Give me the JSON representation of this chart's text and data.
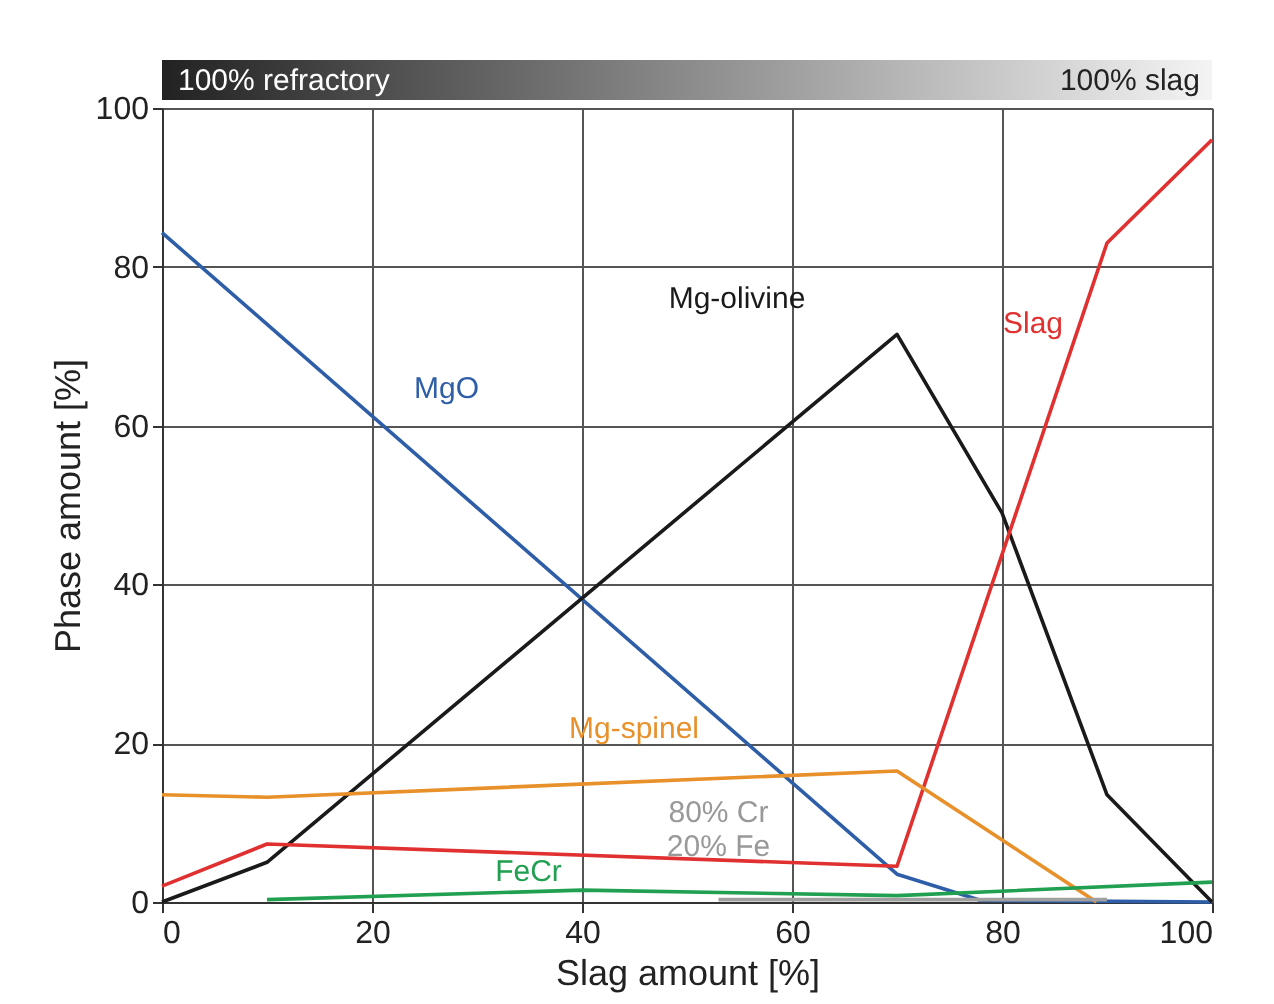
{
  "chart_data": {
    "type": "line",
    "xlabel": "Slag amount [%]",
    "ylabel": "Phase amount [%]",
    "xlim": [
      0,
      100
    ],
    "ylim": [
      0,
      100
    ],
    "xticks": [
      0,
      20,
      40,
      60,
      80,
      100
    ],
    "yticks": [
      0,
      20,
      40,
      60,
      80,
      100
    ],
    "grid": true,
    "marker": "none",
    "line_style": "solid",
    "series": [
      {
        "name": "MgO",
        "color": "#2e5ea8",
        "x": [
          0,
          70,
          78,
          100
        ],
        "values": [
          84.3,
          3.5,
          0.2,
          0
        ]
      },
      {
        "name": "Mg-olivine",
        "color": "#1a1a1a",
        "x": [
          0,
          10,
          70,
          80,
          90,
          100
        ],
        "values": [
          0,
          5,
          71.5,
          49,
          13.5,
          0
        ]
      },
      {
        "name": "Slag",
        "color": "#e03030",
        "x": [
          0,
          10,
          70,
          90,
          100
        ],
        "values": [
          2,
          7.3,
          4.5,
          83,
          96
        ]
      },
      {
        "name": "Mg-spinel",
        "color": "#e8902a",
        "x": [
          0,
          10,
          70,
          89
        ],
        "values": [
          13.5,
          13.2,
          16.5,
          0
        ]
      },
      {
        "name": "FeCr",
        "color": "#20a050",
        "x": [
          10,
          40,
          70,
          100
        ],
        "values": [
          0.3,
          1.5,
          0.8,
          2.5
        ]
      },
      {
        "color": "#a0a0a0",
        "x": [
          53,
          90
        ],
        "values": [
          0.3,
          0.3
        ]
      }
    ],
    "annotations": [
      "100% refractory",
      "100% slag",
      "80% Cr\n20% Fe"
    ]
  }
}
